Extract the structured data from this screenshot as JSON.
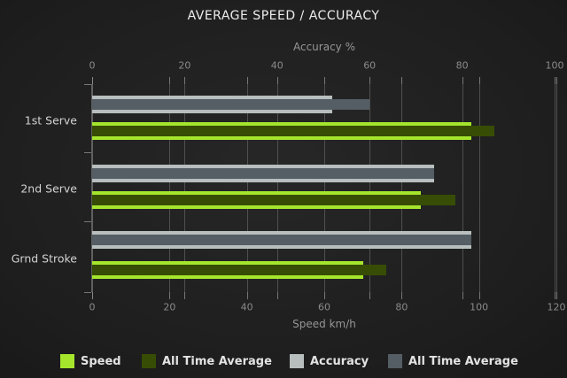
{
  "title": "AVERAGE SPEED / ACCURACY",
  "chart_data": {
    "type": "bar",
    "orientation": "horizontal",
    "grid": true,
    "categories": [
      "1st Serve",
      "2nd Serve",
      "Grnd Stroke"
    ],
    "series": [
      {
        "name": "Speed",
        "axis": "bottom",
        "color": "#a5e62d",
        "values": [
          98,
          85,
          70
        ]
      },
      {
        "name": "All Time Average",
        "axis": "bottom",
        "color": "#374d05",
        "values": [
          104,
          94,
          76
        ]
      },
      {
        "name": "Accuracy",
        "axis": "top",
        "color": "#b8bebe",
        "values": [
          52,
          74,
          82
        ]
      },
      {
        "name": "All Time Average",
        "axis": "top",
        "color": "#545e64",
        "values": [
          60,
          74,
          82
        ]
      }
    ],
    "axes": {
      "top": {
        "label": "Accuracy %",
        "range": [
          0,
          100
        ],
        "ticks": [
          0,
          20,
          40,
          60,
          80,
          100
        ]
      },
      "bottom": {
        "label": "Speed km/h",
        "range": [
          0,
          120
        ],
        "ticks": [
          0,
          20,
          40,
          60,
          80,
          100,
          120
        ]
      }
    },
    "legend": {
      "position": "bottom",
      "items": [
        {
          "label": "Speed",
          "color": "#a5e62d"
        },
        {
          "label": "All Time Average",
          "color": "#374d05"
        },
        {
          "label": "Accuracy",
          "color": "#b8bebe"
        },
        {
          "label": "All Time Average",
          "color": "#545e64"
        }
      ]
    }
  },
  "colors": {
    "background_center": "#272727",
    "background_edge": "#141414",
    "title": "#ededed",
    "tick_label": "#8a8a8a",
    "axis_title": "#969696",
    "category_label": "#d2d2d2",
    "legend_label": "#e3e3e3",
    "gridline": "#757575",
    "axis_line": "#606060"
  }
}
